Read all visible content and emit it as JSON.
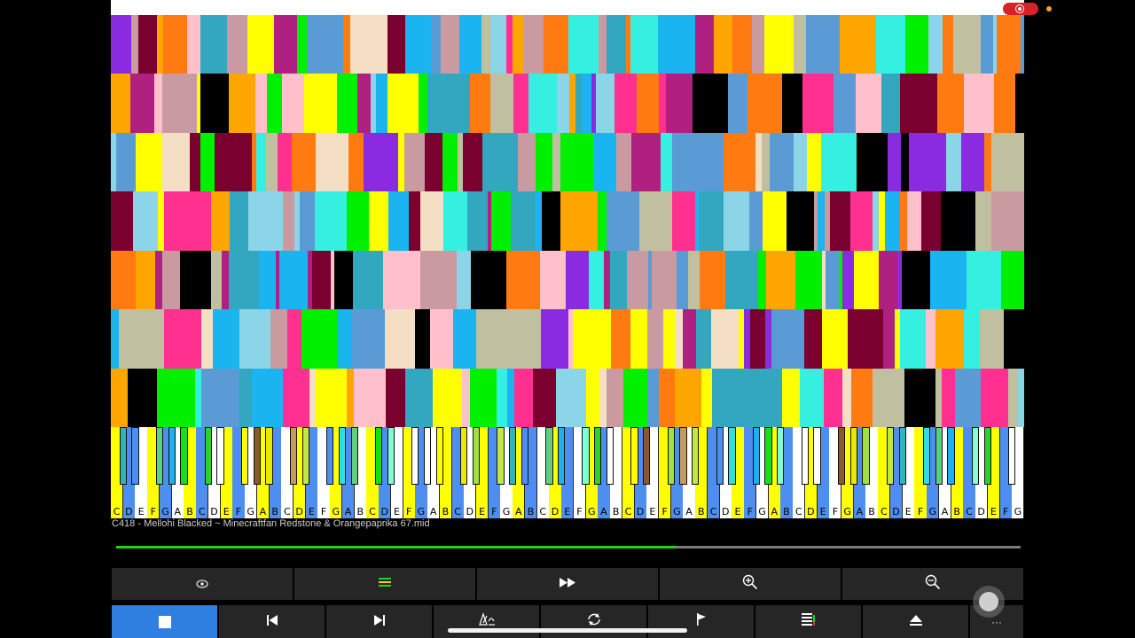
{
  "song": {
    "title": "C418 - Mellohi Blacked ~ Minecraftfan Redstone & Orangepaprika 67.mid"
  },
  "playback": {
    "progress_fraction": 0.62,
    "progress_color": "#21d321",
    "state": "playing"
  },
  "toolbar_top": [
    {
      "name": "visibility-button",
      "icon": "eye-icon",
      "glyph": "👁"
    },
    {
      "name": "tracks-button",
      "icon": "tracks-icon",
      "glyph": "☰"
    },
    {
      "name": "fast-forward-button",
      "icon": "fast-forward-icon",
      "glyph": "▶▶"
    },
    {
      "name": "zoom-in-button",
      "icon": "zoom-in-icon",
      "glyph": "⊕"
    },
    {
      "name": "zoom-out-button",
      "icon": "zoom-out-icon",
      "glyph": "⊖"
    }
  ],
  "toolbar_bottom": [
    {
      "name": "stop-button",
      "icon": "stop-icon",
      "glyph": ""
    },
    {
      "name": "previous-button",
      "icon": "skip-back-icon",
      "glyph": "⏮"
    },
    {
      "name": "next-button",
      "icon": "skip-forward-icon",
      "glyph": "⏭"
    },
    {
      "name": "metronome-button",
      "icon": "metronome-icon",
      "glyph": "𝄞"
    },
    {
      "name": "loop-button",
      "icon": "loop-icon",
      "glyph": "⟲"
    },
    {
      "name": "flag-button",
      "icon": "flag-icon",
      "glyph": "⚑"
    },
    {
      "name": "list-button",
      "icon": "list-icon",
      "glyph": "☰"
    },
    {
      "name": "eject-button",
      "icon": "eject-icon",
      "glyph": "⏏"
    },
    {
      "name": "more-button",
      "icon": "more-icon",
      "glyph": "···"
    }
  ],
  "keyboard": {
    "visible_note_labels": [
      "C",
      "D",
      "E",
      "F",
      "G",
      "A",
      "B"
    ],
    "key_colors": [
      "#ffff00",
      "#16e016",
      "#32b4c0",
      "#8b5a2b",
      "#7fffd4",
      "#4e8ef0",
      "#e8e800",
      "#2ad32a",
      "#2ae0e0",
      "#a0e040",
      "#ffffff",
      "#5fd080",
      "#c49a60",
      "#ffffff",
      "#1bb0f0",
      "#c0e840"
    ]
  },
  "piano_roll": {
    "palette": [
      "#00f000",
      "#33a7c0",
      "#ffff00",
      "#f5dfc4",
      "#c99aa0",
      "#1ab5f0",
      "#8cd4e8",
      "#ff7a10",
      "#b02080",
      "#7a0030",
      "#8a2be2",
      "#35f0e0",
      "#000000",
      "#c0c0a0",
      "#ffc0cb",
      "#ffa500",
      "#ff3090",
      "#5a9bd5"
    ]
  },
  "status": {
    "recording": true,
    "recording_color": "#d8222a"
  }
}
